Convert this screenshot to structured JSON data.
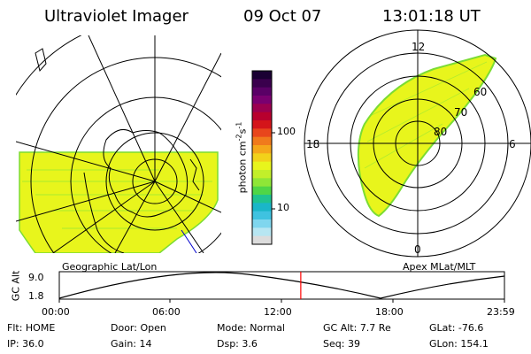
{
  "header": {
    "instrument": "Ultraviolet Imager",
    "date": "09 Oct 07",
    "time": "13:01:18 UT"
  },
  "colors": {
    "aurora_fill": "#e8f51c",
    "aurora_edge": "#7bdc33",
    "grid": "#000000",
    "timeline_marker": "#ff0000"
  },
  "geo_panel": {
    "label": "Geographic Lat/Lon"
  },
  "apex_panel": {
    "label": "Apex MLat/MLT",
    "mlt_labels": {
      "top": "12",
      "left": "18",
      "right": "6",
      "bottom": "0"
    },
    "lat_labels": [
      "60",
      "70",
      "80"
    ]
  },
  "colorbar": {
    "unit_label": "photon cm",
    "unit_sup1": "-2",
    "unit_mid": "s",
    "unit_sup2": "-1",
    "tick_labels": [
      "100",
      "10"
    ],
    "colors": [
      "#1a0033",
      "#3a004d",
      "#5a0066",
      "#7a0070",
      "#9b0050",
      "#b8002e",
      "#d4151a",
      "#e8461c",
      "#f07a1c",
      "#f5a71a",
      "#f2d21a",
      "#e8f51c",
      "#c2ef2a",
      "#8fe637",
      "#4fd646",
      "#1fc38f",
      "#1ab6c8",
      "#3fc2e0",
      "#7fd6ee",
      "#b7e6f2",
      "#dcdcdc"
    ]
  },
  "timeline": {
    "axis_title": "GC Alt",
    "y_ticks": [
      "9.0",
      "1.8"
    ],
    "x_ticks": [
      "00:00",
      "06:00",
      "12:00",
      "18:00",
      "23:59"
    ],
    "current_time_hours": 13.02
  },
  "status": {
    "row1": [
      {
        "label": "Flt:",
        "value": "HOME"
      },
      {
        "label": "Door:",
        "value": "Open"
      },
      {
        "label": "Mode:",
        "value": "Normal"
      },
      {
        "label": "GC Alt:",
        "value": "7.7 Re"
      },
      {
        "label": "GLat:",
        "value": "-76.6"
      }
    ],
    "row2": [
      {
        "label": "IP:",
        "value": "36.0"
      },
      {
        "label": "Gain:",
        "value": "14"
      },
      {
        "label": "Dsp:",
        "value": "3.6"
      },
      {
        "label": "Seq:",
        "value": "39"
      },
      {
        "label": "GLon:",
        "value": "154.1"
      }
    ]
  }
}
